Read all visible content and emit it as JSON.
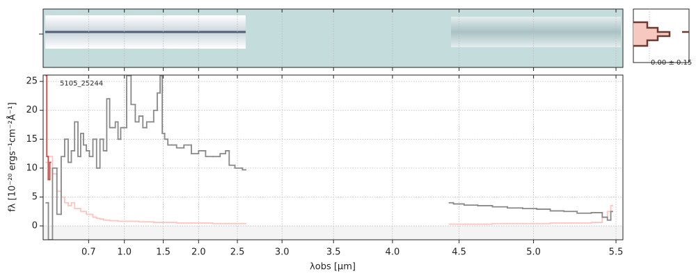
{
  "chart_data": {
    "type": "line",
    "drawstyle": "steps-mid",
    "annotation": "5105_25244",
    "x_label": "λobs [μm]",
    "y_label": "fλ [10⁻²⁰ ergs⁻¹cm⁻²Å⁻¹]",
    "xlim": [
      0.49,
      5.54
    ],
    "ylim": [
      -2.4,
      26.1
    ],
    "xticks": [
      0.7,
      {
        "value": 1,
        "label": "1.0"
      },
      1.5,
      {
        "value": 2,
        "label": "2.0"
      },
      2.5,
      {
        "value": 3,
        "label": "3.0"
      },
      3.5,
      {
        "value": 4,
        "label": "4.0"
      },
      4.5,
      {
        "value": 5,
        "label": "5.0"
      },
      5.5
    ],
    "yticks": [
      0,
      5,
      10,
      15,
      20,
      25
    ],
    "grid": true,
    "series": [
      {
        "color": "#ffc4c0",
        "x": [
          0.5,
          0.516,
          0.53,
          0.55,
          0.565,
          0.58,
          0.597,
          0.61,
          0.63,
          0.645,
          0.66,
          0.677,
          0.694,
          0.716,
          0.74,
          0.767,
          0.79,
          0.82,
          0.845,
          0.87,
          0.897,
          0.92,
          0.95,
          0.974,
          1.0,
          1.05,
          1.1,
          1.15,
          1.19,
          1.25,
          1.29,
          1.34,
          1.39,
          1.44,
          1.47,
          1.5,
          1.54,
          1.59,
          1.64,
          1.74,
          1.85,
          1.95,
          2.05,
          2.14,
          2.24,
          2.33,
          2.38,
          2.42,
          2.52,
          2.6
        ],
        "values": [
          11,
          12,
          9,
          6,
          5,
          4,
          3.5,
          4,
          3,
          3,
          2.5,
          2.5,
          2,
          2,
          1.5,
          1.3,
          1.2,
          1,
          1,
          0.9,
          0.9,
          0.9,
          0.8,
          0.8,
          0.8,
          0.8,
          0.8,
          0.8,
          0.7,
          0.7,
          0.7,
          0.7,
          0.6,
          0.6,
          0.6,
          0.6,
          0.6,
          0.6,
          0.6,
          0.5,
          0.5,
          0.5,
          0.5,
          0.5,
          0.4,
          0.4,
          0.4,
          0.4,
          0.4,
          0.4
        ]
      },
      {
        "color": "#ffc4c0",
        "x": [
          4.43,
          4.49,
          4.58,
          4.68,
          4.78,
          4.88,
          4.98,
          5.06,
          5.15,
          5.23,
          5.31,
          5.4,
          5.44,
          5.46,
          5.48
        ],
        "values": [
          0.3,
          0.3,
          0.3,
          0.3,
          0.4,
          0.4,
          0.4,
          0.4,
          0.5,
          0.5,
          0.5,
          0.6,
          1.5,
          2.5,
          3.5
        ]
      },
      {
        "color": "#c04848",
        "x": [
          0.5,
          0.505,
          0.51,
          0.516
        ],
        "values": [
          26,
          12,
          8,
          11
        ]
      },
      {
        "color": "#888888",
        "x": [
          0.5,
          0.516,
          0.53,
          0.55,
          0.565,
          0.58,
          0.597,
          0.61,
          0.63,
          0.645,
          0.66,
          0.677,
          0.694,
          0.716,
          0.74,
          0.767,
          0.79,
          0.82,
          0.845,
          0.87,
          0.897,
          0.92,
          0.95,
          0.974,
          1.0,
          1.05,
          1.1,
          1.15,
          1.19,
          1.25,
          1.29,
          1.34,
          1.39,
          1.44,
          1.47,
          1.5,
          1.54,
          1.59,
          1.64,
          1.74,
          1.85,
          1.95,
          2.05,
          2.14,
          2.24,
          2.33,
          2.38,
          2.42,
          2.52,
          2.6
        ],
        "values": [
          4,
          -2.4,
          10,
          2,
          12,
          15,
          11,
          13,
          18,
          12,
          16,
          14,
          13,
          12,
          15,
          10,
          15,
          13,
          22,
          17,
          17,
          18,
          15,
          17,
          17,
          26,
          21,
          18,
          19,
          17,
          18,
          18,
          20,
          23,
          26,
          16,
          15,
          14,
          14,
          13.5,
          14,
          12.5,
          13,
          12,
          12,
          12.5,
          13,
          10.5,
          10,
          9.7
        ]
      },
      {
        "color": "#888888",
        "x": [
          4.43,
          4.49,
          4.58,
          4.68,
          4.78,
          4.88,
          4.98,
          5.06,
          5.15,
          5.23,
          5.31,
          5.4,
          5.44,
          5.46,
          5.48
        ],
        "values": [
          4,
          3.8,
          3.6,
          3.5,
          3.3,
          3.1,
          3,
          2.9,
          2.6,
          2.5,
          2.2,
          2.3,
          1.5,
          1,
          2.5
        ]
      }
    ]
  },
  "profile_label": "0.00 ± 0.15"
}
